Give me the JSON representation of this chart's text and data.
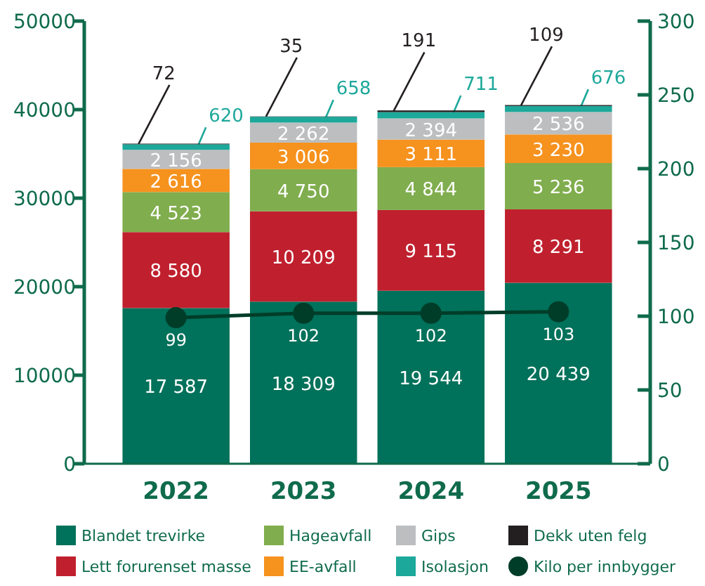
{
  "chart_data": {
    "type": "bar",
    "stacked": true,
    "categories": [
      "2022",
      "2023",
      "2024",
      "2025"
    ],
    "ylim": [
      0,
      50000
    ],
    "yticks": [
      0,
      10000,
      20000,
      30000,
      40000,
      50000
    ],
    "y2lim": [
      0,
      300
    ],
    "y2ticks": [
      0,
      50,
      100,
      150,
      200,
      250,
      300
    ],
    "grid": false,
    "legend": "bottom",
    "marker": "circle",
    "series": [
      {
        "name": "Blandet trevirke",
        "color": "#00715a",
        "values": [
          17587,
          18309,
          19544,
          20439
        ],
        "value_labels": [
          "17 587",
          "18 309",
          "19 544",
          "20 439"
        ]
      },
      {
        "name": "Lett forurenset masse",
        "color": "#c0202e",
        "values": [
          8580,
          10209,
          9115,
          8291
        ],
        "value_labels": [
          "8 580",
          "10 209",
          "9 115",
          "8 291"
        ]
      },
      {
        "name": "Hageavfall",
        "color": "#80ad4e",
        "values": [
          4523,
          4750,
          4844,
          5236
        ],
        "value_labels": [
          "4 523",
          "4 750",
          "4 844",
          "5 236"
        ]
      },
      {
        "name": "EE-avfall",
        "color": "#f6921e",
        "values": [
          2616,
          3006,
          3111,
          3230
        ],
        "value_labels": [
          "2 616",
          "3 006",
          "3 111",
          "3 230"
        ]
      },
      {
        "name": "Gips",
        "color": "#bcbec0",
        "values": [
          2156,
          2262,
          2394,
          2536
        ],
        "value_labels": [
          "2 156",
          "2 262",
          "2 394",
          "2 536"
        ]
      },
      {
        "name": "Isolasjon",
        "color": "#1ca89a",
        "values": [
          620,
          658,
          711,
          676
        ],
        "value_labels": [
          "620",
          "658",
          "711",
          "676"
        ]
      },
      {
        "name": "Dekk uten felg",
        "color": "#231f20",
        "values": [
          72,
          35,
          191,
          109
        ],
        "value_labels": [
          "72",
          "35",
          "191",
          "109"
        ]
      },
      {
        "name": "Kilo per innbygger",
        "type": "line",
        "axis": "y2",
        "color": "#003d29",
        "values": [
          99,
          102,
          102,
          103
        ],
        "value_labels": [
          "99",
          "102",
          "102",
          "103"
        ]
      }
    ]
  }
}
